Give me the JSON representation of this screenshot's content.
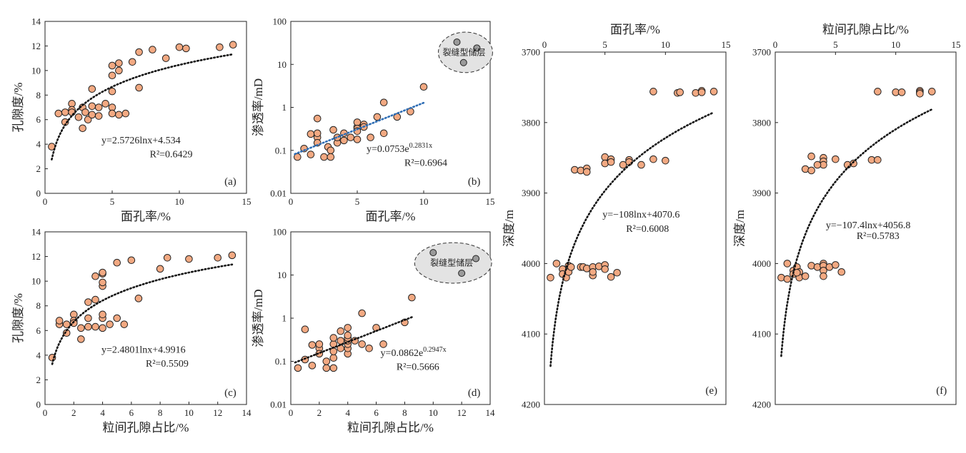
{
  "colors": {
    "marker_fill": "#F2A982",
    "marker_stroke": "#222222",
    "trend_black": "#111111",
    "trend_blue": "#2E6DB4",
    "fracture_fill": "#E3E3E3",
    "fracture_point": "#9A9A9A"
  },
  "chart_data": [
    {
      "id": "a",
      "type": "scatter",
      "panel_label": "(a)",
      "xlabel": "面孔率/%",
      "ylabel": "孔隙度/%",
      "xlim": [
        0,
        15
      ],
      "ylim": [
        0,
        14
      ],
      "xticks": [
        "0",
        "5",
        "10",
        "15"
      ],
      "yticks": [
        "0",
        "2",
        "4",
        "6",
        "8",
        "10",
        "12",
        "14"
      ],
      "points": [
        [
          0.5,
          3.8
        ],
        [
          1.0,
          6.5
        ],
        [
          1.5,
          6.6
        ],
        [
          1.5,
          5.8
        ],
        [
          2.0,
          7.3
        ],
        [
          2.0,
          6.8
        ],
        [
          2.0,
          6.6
        ],
        [
          2.5,
          6.2
        ],
        [
          2.8,
          7.0
        ],
        [
          2.8,
          5.3
        ],
        [
          3.0,
          6.6
        ],
        [
          3.2,
          6.0
        ],
        [
          3.5,
          8.5
        ],
        [
          3.5,
          6.4
        ],
        [
          3.5,
          7.1
        ],
        [
          4.0,
          6.3
        ],
        [
          4.0,
          7.0
        ],
        [
          4.5,
          7.3
        ],
        [
          5.0,
          8.3
        ],
        [
          5.0,
          9.6
        ],
        [
          5.0,
          10.4
        ],
        [
          5.0,
          7.0
        ],
        [
          5.0,
          6.5
        ],
        [
          5.5,
          10.0
        ],
        [
          5.5,
          10.6
        ],
        [
          5.5,
          6.4
        ],
        [
          6.0,
          6.5
        ],
        [
          6.5,
          10.7
        ],
        [
          7.0,
          11.5
        ],
        [
          7.0,
          8.6
        ],
        [
          8.0,
          11.7
        ],
        [
          9.0,
          11.0
        ],
        [
          10.0,
          11.9
        ],
        [
          10.5,
          11.8
        ],
        [
          13.0,
          11.9
        ],
        [
          14.0,
          12.1
        ]
      ],
      "trend": {
        "kind": "log",
        "a": 2.5726,
        "b": 4.534,
        "x_from": 0.5,
        "x_to": 14,
        "color": "black"
      },
      "equation": "y=2.5726lnx+4.534",
      "r2": "R²=0.6429"
    },
    {
      "id": "b",
      "type": "scatter",
      "panel_label": "(b)",
      "xlabel": "面孔率/%",
      "ylabel": "渗透率/mD",
      "xlim": [
        0,
        15
      ],
      "ylim": [
        0.01,
        100
      ],
      "yscale": "log",
      "xticks": [
        "0",
        "5",
        "10",
        "15"
      ],
      "yticks": [
        "0.01",
        "0.1",
        "1",
        "10",
        "100"
      ],
      "points": [
        [
          0.5,
          0.07
        ],
        [
          1.0,
          0.11
        ],
        [
          1.5,
          0.08
        ],
        [
          1.5,
          0.24
        ],
        [
          2.0,
          0.2
        ],
        [
          2.0,
          0.15
        ],
        [
          2.0,
          0.55
        ],
        [
          2.0,
          0.25
        ],
        [
          2.5,
          0.07
        ],
        [
          2.8,
          0.12
        ],
        [
          3.0,
          0.1
        ],
        [
          3.0,
          0.07
        ],
        [
          3.2,
          0.3
        ],
        [
          3.5,
          0.15
        ],
        [
          3.5,
          0.2
        ],
        [
          4.0,
          0.25
        ],
        [
          4.0,
          0.17
        ],
        [
          4.5,
          0.2
        ],
        [
          5.0,
          0.35
        ],
        [
          5.0,
          0.45
        ],
        [
          5.0,
          0.32
        ],
        [
          5.0,
          0.28
        ],
        [
          5.0,
          0.18
        ],
        [
          5.5,
          0.4
        ],
        [
          5.5,
          0.35
        ],
        [
          6.0,
          0.2
        ],
        [
          6.5,
          0.6
        ],
        [
          7.0,
          1.3
        ],
        [
          7.0,
          0.25
        ],
        [
          8.0,
          0.6
        ],
        [
          9.0,
          0.8
        ],
        [
          10.0,
          3.0
        ]
      ],
      "fracture_points": [
        [
          12.5,
          33
        ],
        [
          14,
          24
        ],
        [
          13,
          11
        ]
      ],
      "fracture_label": "裂缝型储层",
      "trend": {
        "kind": "exp",
        "a": 0.0753,
        "b": 0.2831,
        "x_from": 0.3,
        "x_to": 10,
        "color": "blue"
      },
      "equation": "y=0.0753e",
      "equation_exp": "0.2831x",
      "r2": "R²=0.6964"
    },
    {
      "id": "c",
      "type": "scatter",
      "panel_label": "(c)",
      "xlabel": "粒间孔隙占比/%",
      "ylabel": "孔隙度/%",
      "xlim": [
        0,
        14
      ],
      "ylim": [
        0,
        14
      ],
      "xticks": [
        "0",
        "2",
        "4",
        "6",
        "8",
        "10",
        "12",
        "14"
      ],
      "yticks": [
        "0",
        "2",
        "4",
        "6",
        "8",
        "10",
        "12",
        "14"
      ],
      "points": [
        [
          0.5,
          3.8
        ],
        [
          1.0,
          6.5
        ],
        [
          1.0,
          6.8
        ],
        [
          1.5,
          5.8
        ],
        [
          1.5,
          6.5
        ],
        [
          2.0,
          7.3
        ],
        [
          2.0,
          6.8
        ],
        [
          2.0,
          6.6
        ],
        [
          2.5,
          6.2
        ],
        [
          2.5,
          5.3
        ],
        [
          3.0,
          6.3
        ],
        [
          3.0,
          7.0
        ],
        [
          3.0,
          8.3
        ],
        [
          3.5,
          8.5
        ],
        [
          3.5,
          6.3
        ],
        [
          3.5,
          10.4
        ],
        [
          4.0,
          6.2
        ],
        [
          4.0,
          7.0
        ],
        [
          4.0,
          7.3
        ],
        [
          4.0,
          9.6
        ],
        [
          4.0,
          9.9
        ],
        [
          4.0,
          10.6
        ],
        [
          4.0,
          10.7
        ],
        [
          4.5,
          6.5
        ],
        [
          5.0,
          7.0
        ],
        [
          5.0,
          11.5
        ],
        [
          5.5,
          6.5
        ],
        [
          6.0,
          11.7
        ],
        [
          6.5,
          8.6
        ],
        [
          8.0,
          11.0
        ],
        [
          8.5,
          11.9
        ],
        [
          10.0,
          11.8
        ],
        [
          12.0,
          11.9
        ],
        [
          13.0,
          12.1
        ]
      ],
      "trend": {
        "kind": "log",
        "a": 2.4801,
        "b": 4.9916,
        "x_from": 0.5,
        "x_to": 13,
        "color": "black"
      },
      "equation": "y=2.4801lnx+4.9916",
      "r2": "R²=0.5509"
    },
    {
      "id": "d",
      "type": "scatter",
      "panel_label": "(d)",
      "xlabel": "粒间孔隙占比/%",
      "ylabel": "渗透率/mD",
      "xlim": [
        0,
        14
      ],
      "ylim": [
        0.01,
        100
      ],
      "yscale": "log",
      "xticks": [
        "0",
        "2",
        "4",
        "6",
        "8",
        "10",
        "12",
        "14"
      ],
      "yticks": [
        "0.01",
        "0.1",
        "1",
        "10",
        "100"
      ],
      "points": [
        [
          0.5,
          0.07
        ],
        [
          1.0,
          0.55
        ],
        [
          1.0,
          0.11
        ],
        [
          1.5,
          0.08
        ],
        [
          1.5,
          0.24
        ],
        [
          2.0,
          0.2
        ],
        [
          2.0,
          0.15
        ],
        [
          2.0,
          0.25
        ],
        [
          2.5,
          0.07
        ],
        [
          2.5,
          0.1
        ],
        [
          3.0,
          0.07
        ],
        [
          3.0,
          0.12
        ],
        [
          3.0,
          0.17
        ],
        [
          3.0,
          0.25
        ],
        [
          3.0,
          0.35
        ],
        [
          3.5,
          0.5
        ],
        [
          3.5,
          0.2
        ],
        [
          3.5,
          0.3
        ],
        [
          4.0,
          0.15
        ],
        [
          4.0,
          0.2
        ],
        [
          4.0,
          0.25
        ],
        [
          4.0,
          0.3
        ],
        [
          4.0,
          0.35
        ],
        [
          4.0,
          0.4
        ],
        [
          4.0,
          0.6
        ],
        [
          4.5,
          0.3
        ],
        [
          5.0,
          1.3
        ],
        [
          5.0,
          0.25
        ],
        [
          5.5,
          0.2
        ],
        [
          6.0,
          0.6
        ],
        [
          6.5,
          0.25
        ],
        [
          8.0,
          0.8
        ],
        [
          8.5,
          3.0
        ]
      ],
      "fracture_points": [
        [
          10,
          33
        ],
        [
          13,
          24
        ],
        [
          12,
          11
        ]
      ],
      "fracture_label": "裂缝型储层",
      "trend": {
        "kind": "exp",
        "a": 0.0862,
        "b": 0.2947,
        "x_from": 0.3,
        "x_to": 8.5,
        "color": "black"
      },
      "equation": "y=0.0862e",
      "equation_exp": "0.2947x",
      "r2": "R²=0.5666"
    },
    {
      "id": "e",
      "type": "scatter",
      "panel_label": "(e)",
      "xlabel": "面孔率/%",
      "ylabel": "深度/m",
      "xlim": [
        0,
        15
      ],
      "ylim": [
        3700,
        4200
      ],
      "y_inverted": true,
      "x_axis_top": true,
      "xticks": [
        "0",
        "5",
        "10",
        "15"
      ],
      "yticks": [
        "3700",
        "3800",
        "3900",
        "4000",
        "4100",
        "4200"
      ],
      "points": [
        [
          9,
          3756
        ],
        [
          11,
          3758
        ],
        [
          11.2,
          3757
        ],
        [
          12.5,
          3758
        ],
        [
          13,
          3755
        ],
        [
          13,
          3757
        ],
        [
          14,
          3756
        ],
        [
          5,
          3849
        ],
        [
          5,
          3858
        ],
        [
          5.5,
          3852
        ],
        [
          7,
          3853
        ],
        [
          7,
          3856
        ],
        [
          6.5,
          3860
        ],
        [
          8,
          3860
        ],
        [
          9,
          3852
        ],
        [
          10,
          3854
        ],
        [
          5.5,
          3856
        ],
        [
          2.5,
          3867
        ],
        [
          3,
          3868
        ],
        [
          3.5,
          3865
        ],
        [
          3.5,
          3870
        ],
        [
          0.5,
          4020
        ],
        [
          1,
          4000
        ],
        [
          1.5,
          4008
        ],
        [
          1.5,
          4015
        ],
        [
          1.8,
          4020
        ],
        [
          2,
          4003
        ],
        [
          2,
          4012
        ],
        [
          2.2,
          4005
        ],
        [
          3,
          4005
        ],
        [
          3.2,
          4005
        ],
        [
          3.5,
          4007
        ],
        [
          4,
          4017
        ],
        [
          4,
          4005
        ],
        [
          4.5,
          4004
        ],
        [
          5,
          4002
        ],
        [
          5,
          4008
        ],
        [
          5.5,
          4019
        ],
        [
          6,
          4013
        ],
        [
          4,
          4012
        ]
      ],
      "trend": {
        "kind": "log",
        "a": -108,
        "b": 4070.6,
        "x_from": 0.5,
        "x_to": 14,
        "color": "black"
      },
      "equation": "y=−108lnx+4070.6",
      "r2": "R²=0.6008"
    },
    {
      "id": "f",
      "type": "scatter",
      "panel_label": "(f)",
      "xlabel": "粒间孔隙占比/%",
      "ylabel": "深度/m",
      "xlim": [
        0,
        15
      ],
      "ylim": [
        3700,
        4200
      ],
      "y_inverted": true,
      "x_axis_top": true,
      "xticks": [
        "0",
        "5",
        "10",
        "15"
      ],
      "yticks": [
        "3700",
        "3800",
        "3900",
        "4000",
        "4100",
        "4200"
      ],
      "points": [
        [
          8.5,
          3756
        ],
        [
          10,
          3757
        ],
        [
          10.5,
          3757
        ],
        [
          12,
          3755
        ],
        [
          12,
          3757
        ],
        [
          12,
          3759
        ],
        [
          13,
          3756
        ],
        [
          3,
          3848
        ],
        [
          4,
          3850
        ],
        [
          4,
          3855
        ],
        [
          4,
          3860
        ],
        [
          3.5,
          3860
        ],
        [
          5,
          3852
        ],
        [
          6,
          3860
        ],
        [
          6.5,
          3858
        ],
        [
          8,
          3853
        ],
        [
          8.5,
          3853
        ],
        [
          2.5,
          3866
        ],
        [
          3,
          3868
        ],
        [
          0.5,
          4020
        ],
        [
          1,
          4000
        ],
        [
          1,
          4022
        ],
        [
          1.5,
          4010
        ],
        [
          1.5,
          4015
        ],
        [
          1.8,
          4005
        ],
        [
          2,
          4012
        ],
        [
          2,
          4020
        ],
        [
          2.5,
          4018
        ],
        [
          3,
          4003
        ],
        [
          3.5,
          4005
        ],
        [
          4,
          4000
        ],
        [
          4,
          4003
        ],
        [
          4,
          4010
        ],
        [
          4,
          4018
        ],
        [
          4.5,
          4005
        ],
        [
          5,
          4002
        ],
        [
          5.5,
          4012
        ],
        [
          1.8,
          4013
        ]
      ],
      "trend": {
        "kind": "log",
        "a": -107.4,
        "b": 4056.8,
        "x_from": 0.5,
        "x_to": 13,
        "color": "black"
      },
      "equation": "y=−107.4lnx+4056.8",
      "r2": "R²=0.5783"
    }
  ]
}
